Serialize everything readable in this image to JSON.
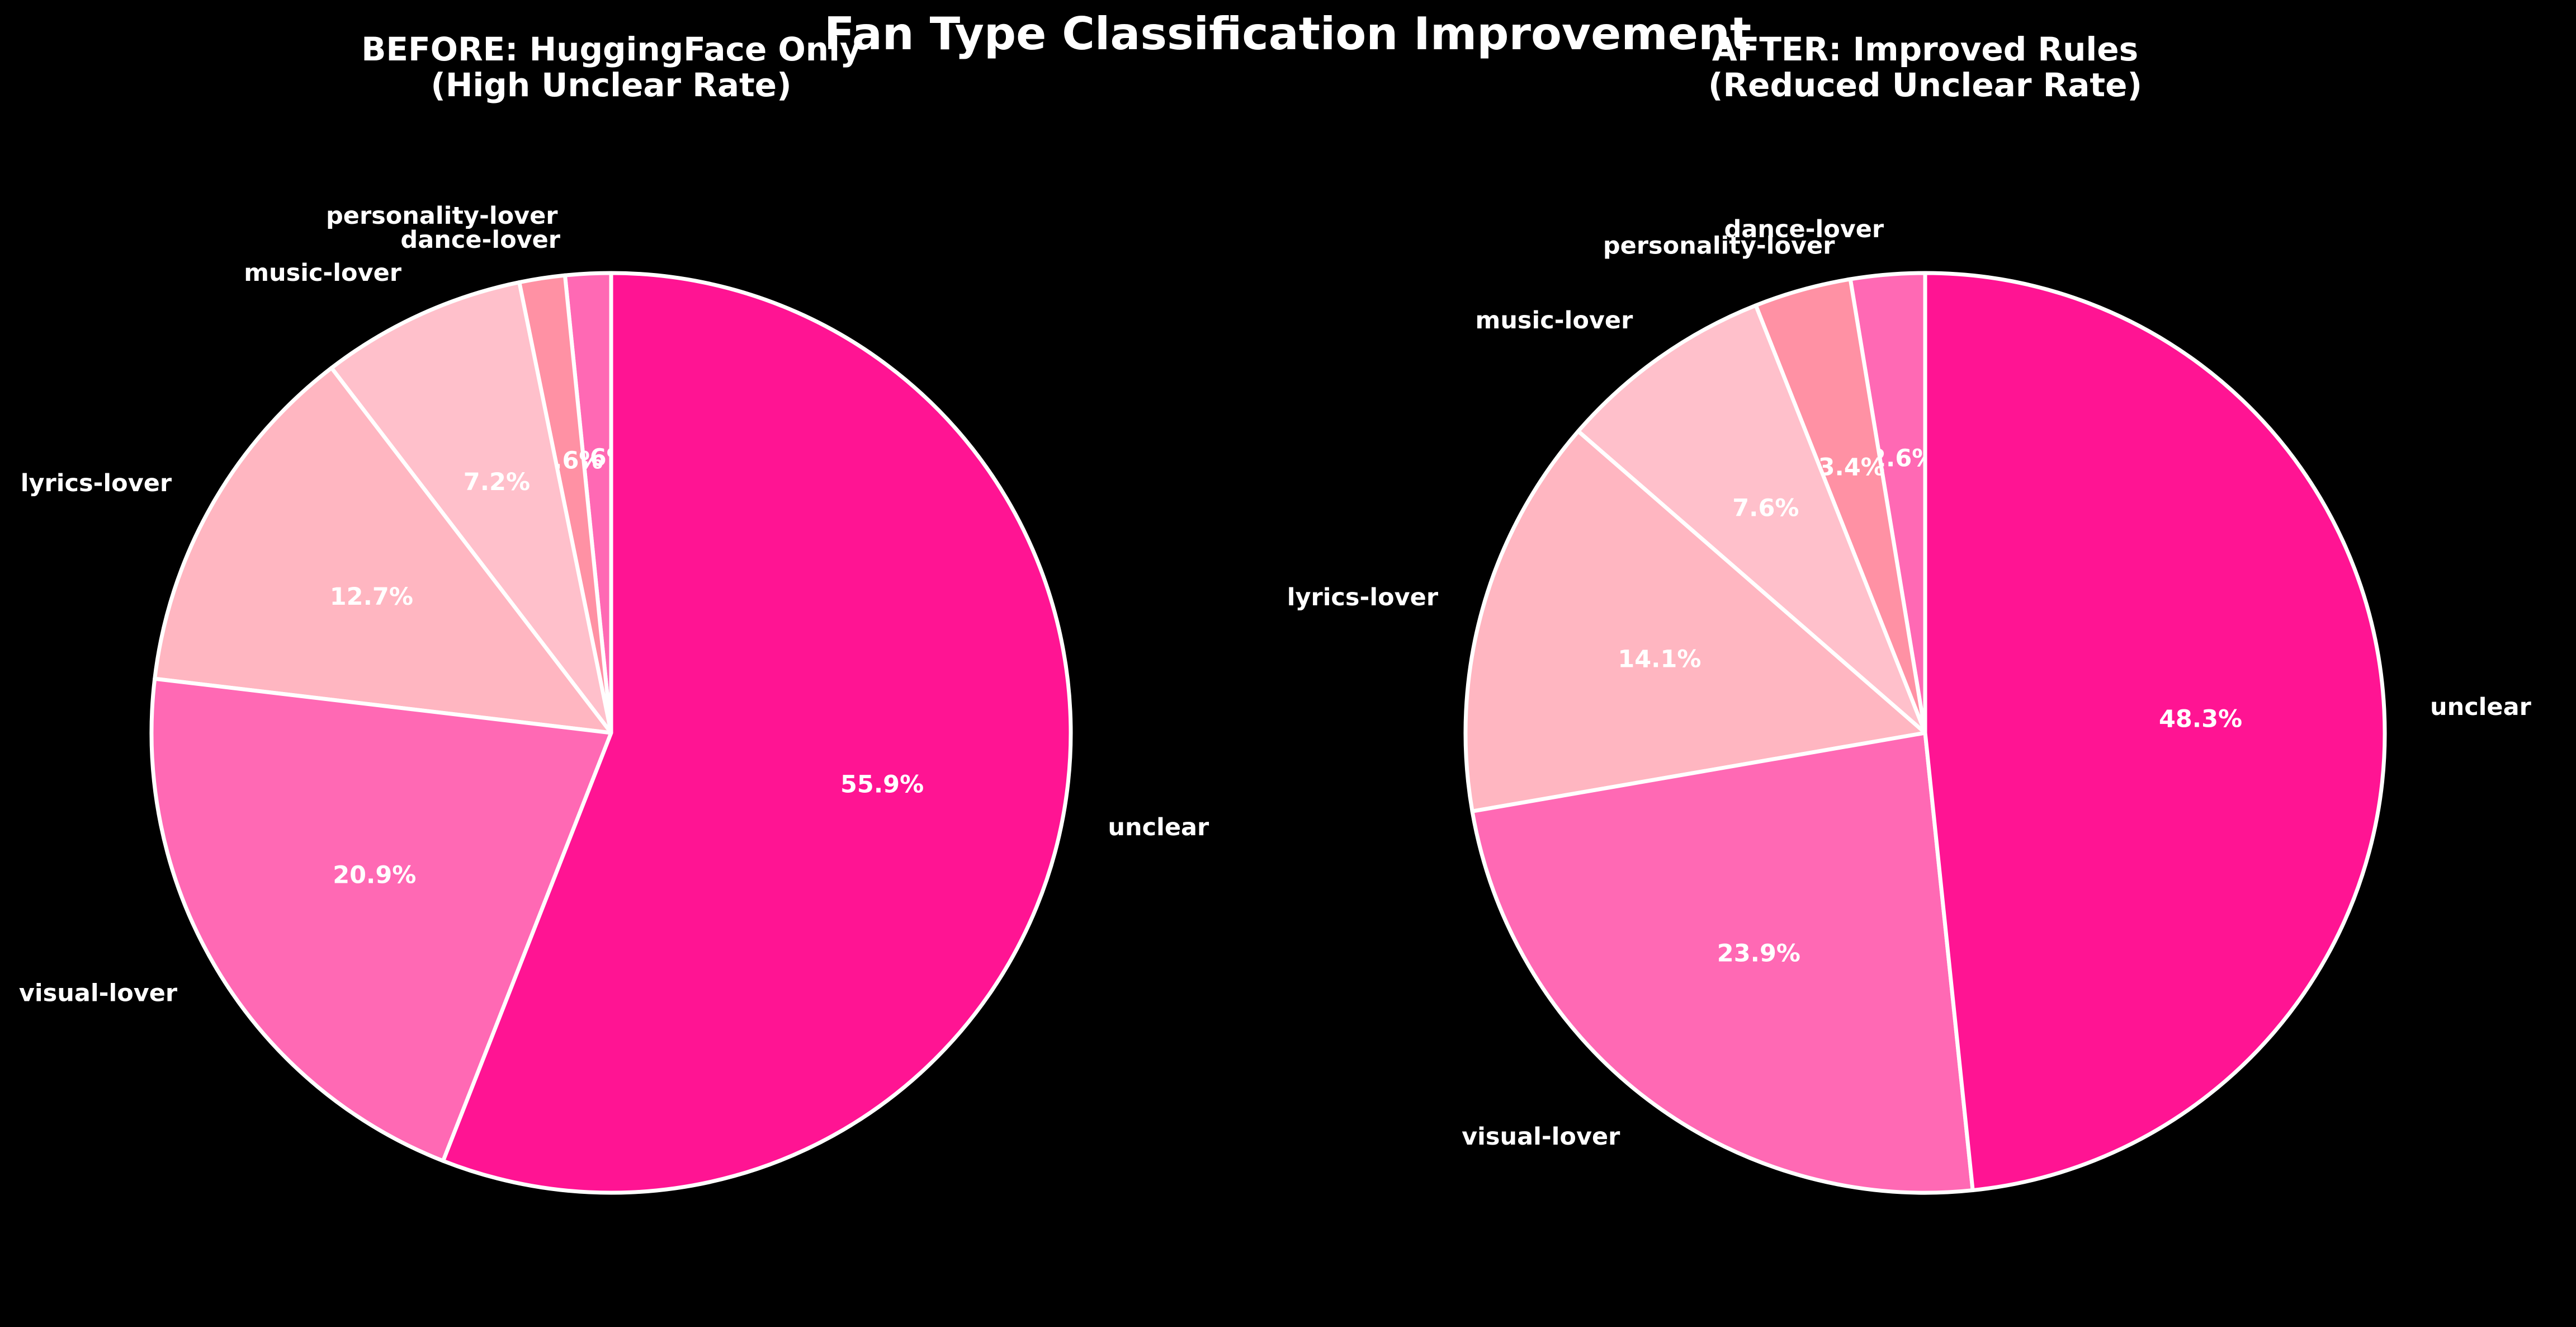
{
  "figure_title": "Fan Type Classification Improvement",
  "chart_data": [
    {
      "type": "pie",
      "title": "BEFORE: HuggingFace Only\n(High Unclear Rate)",
      "start_angle": "90 (counter-clockwise)",
      "slices": [
        {
          "label": "personality-lover",
          "value": 1.6,
          "pct_label": "1.6%",
          "color": "#ff69b4"
        },
        {
          "label": "dance-lover",
          "value": 1.6,
          "pct_label": "1.6%",
          "color": "#ff91a4"
        },
        {
          "label": "music-lover",
          "value": 7.2,
          "pct_label": "7.2%",
          "color": "#ffc0cb"
        },
        {
          "label": "lyrics-lover",
          "value": 12.7,
          "pct_label": "12.7%",
          "color": "#ffb6c1"
        },
        {
          "label": "visual-lover",
          "value": 20.9,
          "pct_label": "20.9%",
          "color": "#ff69b4"
        },
        {
          "label": "unclear",
          "value": 55.9,
          "pct_label": "55.9%",
          "color": "#ff1493"
        }
      ]
    },
    {
      "type": "pie",
      "title": "AFTER: Improved Rules\n(Reduced Unclear Rate)",
      "start_angle": "90 (counter-clockwise)",
      "slices": [
        {
          "label": "dance-lover",
          "value": 2.6,
          "pct_label": "2.6%",
          "color": "#ff69b4"
        },
        {
          "label": "personality-lover",
          "value": 3.4,
          "pct_label": "3.4%",
          "color": "#ff91a4"
        },
        {
          "label": "music-lover",
          "value": 7.6,
          "pct_label": "7.6%",
          "color": "#ffc0cb"
        },
        {
          "label": "lyrics-lover",
          "value": 14.1,
          "pct_label": "14.1%",
          "color": "#ffb6c1"
        },
        {
          "label": "visual-lover",
          "value": 23.9,
          "pct_label": "23.9%",
          "color": "#ff69b4"
        },
        {
          "label": "unclear",
          "value": 48.3,
          "pct_label": "48.3%",
          "color": "#ff1493"
        }
      ]
    }
  ],
  "style": {
    "background": "#000000",
    "text_color": "#ffffff",
    "wedge_edge_color": "#ffffff"
  }
}
